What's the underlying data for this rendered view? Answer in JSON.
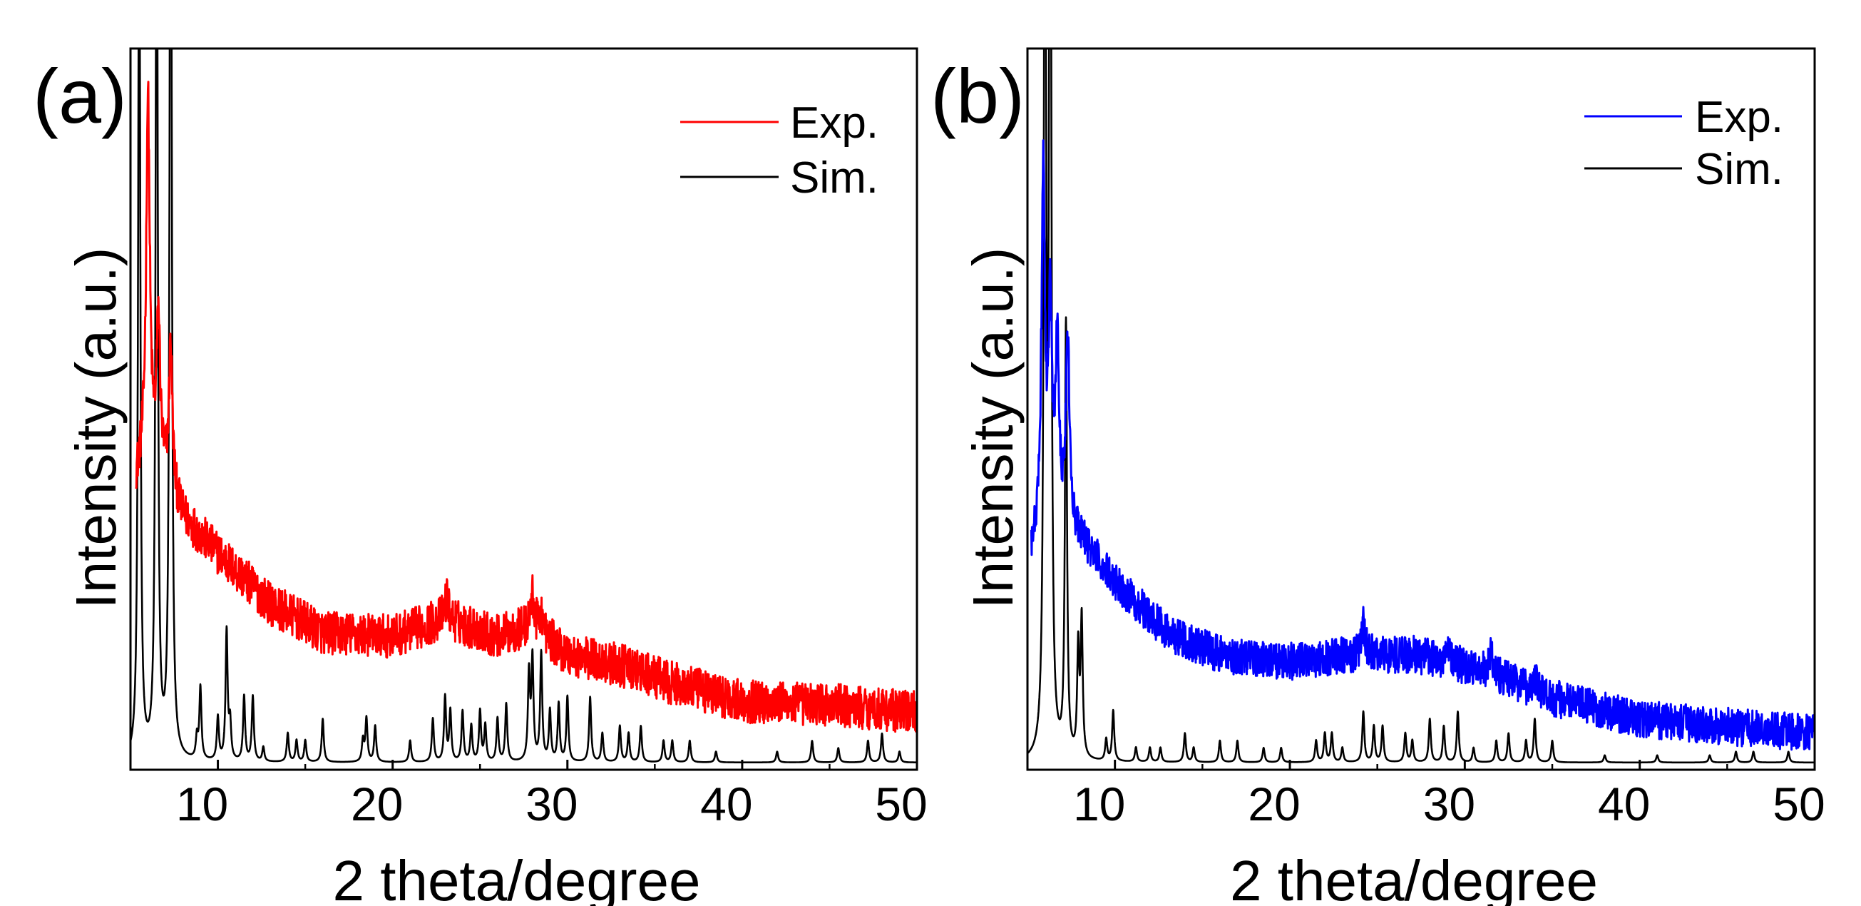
{
  "chart_data": [
    {
      "panel_label": "(a)",
      "type": "line",
      "xlabel": "2 theta/degree",
      "ylabel": "Intensity (a.u.)",
      "xlim": [
        5,
        50
      ],
      "ylim": [
        0,
        100
      ],
      "xticks": [
        10,
        20,
        30,
        40,
        50
      ],
      "yticks_shown": false,
      "grid": false,
      "legend_position": "top-right",
      "series": [
        {
          "name": "Exp.",
          "color": "#ff0000",
          "baseline_x": [
            5.3,
            6,
            7,
            8,
            10,
            13,
            16,
            20,
            23,
            26,
            28,
            30,
            33,
            36,
            40,
            45,
            50
          ],
          "baseline_y": [
            40,
            45,
            40,
            35,
            30,
            23,
            19,
            18.5,
            21,
            18.5,
            20,
            16,
            14.5,
            12,
            9.5,
            9,
            8
          ],
          "peaks_x": [
            6.0,
            6.6,
            7.3,
            23.1,
            28.0,
            28.5
          ],
          "peaks_y": [
            48,
            20,
            20,
            3,
            4,
            3
          ],
          "noise": 3
        },
        {
          "name": "Sim.",
          "color": "#000000",
          "peaks_x": [
            5.5,
            6.5,
            7.3,
            8.8,
            9.0,
            10.0,
            10.5,
            10.7,
            11.5,
            12.0,
            12.6,
            14.0,
            14.5,
            15.0,
            16.0,
            18.3,
            18.5,
            19.0,
            21.0,
            22.3,
            23.0,
            23.3,
            24.0,
            24.5,
            25.0,
            25.3,
            26.0,
            26.5,
            27.8,
            28.0,
            28.5,
            29.0,
            29.5,
            30.0,
            31.3,
            32.0,
            33.0,
            33.5,
            34.2,
            35.5,
            36.0,
            37.0,
            38.5,
            42.0,
            44.0,
            45.5,
            47.2,
            48.0,
            49.0
          ],
          "peaks_y": [
            130,
            140,
            160,
            3,
            10,
            6,
            18,
            5,
            9,
            9,
            2,
            4,
            3,
            3,
            6,
            3,
            6,
            5,
            3,
            6,
            9,
            7,
            7,
            5,
            7,
            5,
            6,
            8,
            12,
            14,
            15,
            7,
            8,
            9,
            9,
            4,
            5,
            4,
            5,
            3,
            3,
            3,
            1.5,
            1.5,
            3,
            2,
            3,
            4,
            1.5
          ]
        }
      ]
    },
    {
      "panel_label": "(b)",
      "type": "line",
      "xlabel": "2 theta/degree",
      "ylabel": "Intensity (a.u.)",
      "xlim": [
        5,
        50
      ],
      "ylim": [
        0,
        100
      ],
      "xticks": [
        10,
        20,
        30,
        40,
        50
      ],
      "yticks_shown": false,
      "grid": false,
      "legend_position": "top-right",
      "series": [
        {
          "name": "Exp.",
          "color": "#0000ff",
          "baseline_x": [
            5.2,
            6,
            7,
            8,
            10,
            13,
            16,
            20,
            24,
            27,
            29,
            32,
            35,
            40,
            45,
            50
          ],
          "baseline_y": [
            30,
            32,
            34,
            32,
            26,
            19,
            16,
            15,
            16,
            16,
            15,
            13,
            10,
            7,
            6,
            5
          ],
          "peaks_x": [
            5.9,
            6.3,
            6.7,
            7.3,
            24.2,
            29.0,
            31.5,
            34.0
          ],
          "peaks_y": [
            50,
            30,
            25,
            26,
            4,
            3,
            3,
            2
          ],
          "noise": 2.6
        },
        {
          "name": "Sim.",
          "color": "#000000",
          "peaks_x": [
            6.0,
            6.3,
            7.2,
            7.9,
            8.1,
            9.5,
            9.9,
            11.2,
            12.0,
            12.6,
            14.0,
            14.5,
            16.0,
            17.0,
            18.5,
            19.5,
            21.5,
            22.0,
            22.4,
            23.0,
            24.2,
            24.8,
            25.3,
            26.6,
            27.0,
            28.0,
            28.8,
            29.6,
            30.5,
            31.8,
            32.5,
            33.5,
            34.0,
            35.0,
            38.0,
            41.0,
            44.0,
            45.5,
            46.5,
            48.5
          ],
          "peaks_y": [
            150,
            160,
            60,
            15,
            19,
            3,
            7,
            2,
            2,
            2,
            4,
            2,
            3,
            3,
            2,
            2,
            3,
            4,
            4,
            2,
            7,
            5,
            5,
            4,
            3,
            6,
            5,
            7,
            2,
            3,
            4,
            3,
            6,
            3,
            1,
            1,
            1,
            1.5,
            1.5,
            1.5
          ]
        }
      ]
    }
  ]
}
